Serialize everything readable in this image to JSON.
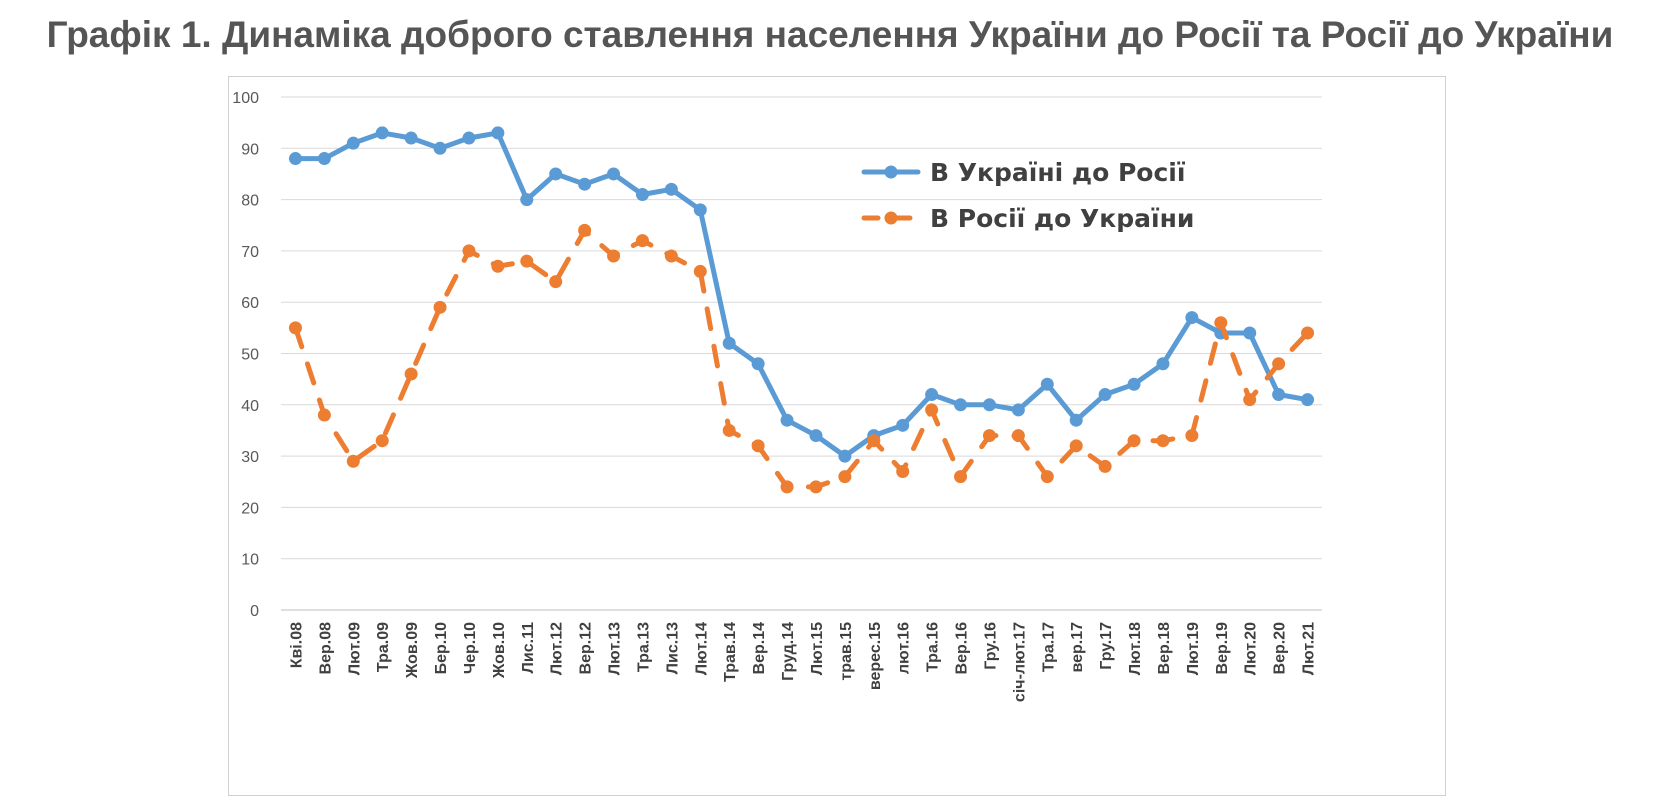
{
  "chart_data": {
    "type": "line",
    "title": "Графік 1. Динаміка доброго ставлення населення України до Росії та Росії до України",
    "xlabel": "",
    "ylabel": "",
    "ylim": [
      0,
      100
    ],
    "yticks": [
      0,
      10,
      20,
      30,
      40,
      50,
      60,
      70,
      80,
      90,
      100
    ],
    "grid": true,
    "legend_position": "top-right",
    "categories": [
      "Кві.08",
      "Вер.08",
      "Лют.09",
      "Тра.09",
      "Жов.09",
      "Бер.10",
      "Чер.10",
      "Жов.10",
      "Лис.11",
      "Лют.12",
      "Вер.12",
      "Лют.13",
      "Тра.13",
      "Лис.13",
      "Лют.14",
      "Трав.14",
      "Вер.14",
      "Груд.14",
      "Лют.15",
      "трав.15",
      "верес.15",
      "лют.16",
      "Тра.16",
      "Вер.16",
      "Гру.16",
      "січ-лют.17",
      "Тра.17",
      "вер.17",
      "Гру.17",
      "Лют.18",
      "Вер.18",
      "Лют.19",
      "Вер.19",
      "Лют.20",
      "Вер.20",
      "Лют.21"
    ],
    "series": [
      {
        "name": "В Україні до Росії",
        "color": "#5b9bd5",
        "style": "solid",
        "values": [
          88,
          88,
          91,
          93,
          92,
          90,
          92,
          93,
          80,
          85,
          83,
          85,
          81,
          82,
          78,
          52,
          48,
          37,
          34,
          30,
          34,
          36,
          42,
          40,
          40,
          39,
          44,
          37,
          42,
          44,
          48,
          57,
          54,
          54,
          42,
          41
        ]
      },
      {
        "name": "В Росії до України",
        "color": "#ed7d31",
        "style": "dashed",
        "values": [
          55,
          38,
          29,
          33,
          46,
          59,
          70,
          67,
          68,
          64,
          74,
          69,
          72,
          69,
          66,
          35,
          32,
          24,
          24,
          26,
          33,
          27,
          39,
          26,
          34,
          34,
          26,
          32,
          28,
          33,
          33,
          34,
          56,
          41,
          48,
          54
        ]
      }
    ]
  }
}
